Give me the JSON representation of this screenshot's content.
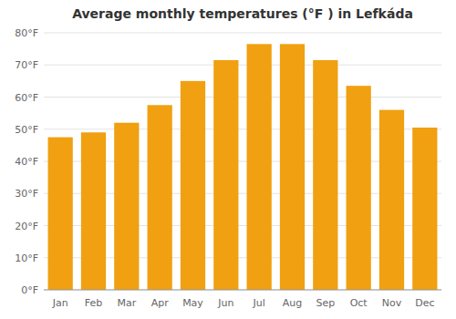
{
  "chart_data": {
    "type": "bar",
    "title": "Average monthly temperatures (°F ) in Lefkáda",
    "categories": [
      "Jan",
      "Feb",
      "Mar",
      "Apr",
      "May",
      "Jun",
      "Jul",
      "Aug",
      "Sep",
      "Oct",
      "Nov",
      "Dec"
    ],
    "values": [
      47.5,
      49.0,
      52.0,
      57.5,
      65.0,
      71.5,
      76.5,
      76.5,
      71.5,
      63.5,
      56.0,
      50.5
    ],
    "color": "#F0A010",
    "ylim": [
      0,
      80
    ],
    "yticks": [
      {
        "value": 0,
        "label": "0°F"
      },
      {
        "value": 10,
        "label": "10°F"
      },
      {
        "value": 20,
        "label": "20°F"
      },
      {
        "value": 30,
        "label": "30°F"
      },
      {
        "value": 40,
        "label": "40°F"
      },
      {
        "value": 50,
        "label": "50°F"
      },
      {
        "value": 60,
        "label": "60°F"
      },
      {
        "value": 70,
        "label": "70°F"
      },
      {
        "value": 80,
        "label": "80°F"
      }
    ],
    "grid": true
  }
}
